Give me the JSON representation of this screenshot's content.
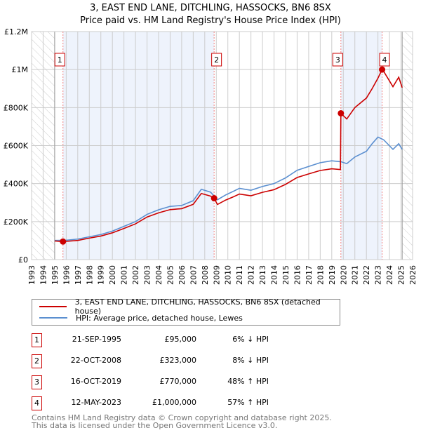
{
  "chart_data": {
    "type": "line",
    "title": "3, EAST END LANE, DITCHLING, HASSOCKS, BN6 8SX",
    "subtitle": "Price paid vs. HM Land Registry's House Price Index (HPI)",
    "xlim": [
      1993,
      2026
    ],
    "ylim": [
      0,
      1200000
    ],
    "x_ticks": [
      "1993",
      "1994",
      "1995",
      "1996",
      "1997",
      "1998",
      "1999",
      "2000",
      "2001",
      "2002",
      "2003",
      "2004",
      "2005",
      "2006",
      "2007",
      "2008",
      "2009",
      "2010",
      "2011",
      "2012",
      "2013",
      "2014",
      "2015",
      "2016",
      "2017",
      "2018",
      "2019",
      "2020",
      "2021",
      "2022",
      "2023",
      "2024",
      "2025",
      "2026"
    ],
    "y_ticks": [
      {
        "v": 0,
        "label": "£0"
      },
      {
        "v": 200000,
        "label": "£200K"
      },
      {
        "v": 400000,
        "label": "£400K"
      },
      {
        "v": 600000,
        "label": "£600K"
      },
      {
        "v": 800000,
        "label": "£800K"
      },
      {
        "v": 1000000,
        "label": "£1M"
      },
      {
        "v": 1200000,
        "label": "£1.2M"
      }
    ],
    "grid": true,
    "hatched_ranges": [
      [
        1993,
        1995
      ],
      [
        2025.1,
        2026
      ]
    ],
    "shaded_ranges": [
      [
        1995.72,
        2008.81
      ],
      [
        2019.79,
        2023.36
      ]
    ],
    "series": [
      {
        "name": "3, EAST END LANE, DITCHLING, HASSOCKS, BN6 8SX (detached house)",
        "color": "#cc0000",
        "x": [
          1995.0,
          1995.72,
          1996,
          1997,
          1998,
          1999,
          2000,
          2001,
          2002,
          2003,
          2004,
          2005,
          2006,
          2007,
          2007.7,
          2008.5,
          2008.81,
          2009.1,
          2009.8,
          2010.5,
          2011,
          2012,
          2013,
          2014,
          2015,
          2016,
          2017,
          2018,
          2019,
          2019.75,
          2019.79,
          2020.3,
          2021,
          2022,
          2022.5,
          2023,
          2023.36,
          2023.5,
          2024.3,
          2024.8,
          2025.1
        ],
        "y": [
          98000,
          95000,
          96000,
          101000,
          113000,
          124000,
          141000,
          164000,
          188000,
          224000,
          246000,
          263000,
          268000,
          291000,
          348000,
          334000,
          323000,
          290000,
          313000,
          331000,
          345000,
          336000,
          354000,
          368000,
          396000,
          432000,
          451000,
          469000,
          478000,
          474000,
          770000,
          740000,
          800000,
          850000,
          900000,
          955000,
          1000000,
          990000,
          910000,
          960000,
          905000
        ]
      },
      {
        "name": "HPI: Average price, detached house, Lewes",
        "color": "#5b8fd0",
        "x": [
          1995.0,
          1996,
          1997,
          1998,
          1999,
          2000,
          2001,
          2002,
          2003,
          2004,
          2005,
          2006,
          2007,
          2007.7,
          2008.5,
          2009.1,
          2009.8,
          2010.5,
          2011,
          2012,
          2013,
          2014,
          2015,
          2016,
          2017,
          2018,
          2019,
          2019.8,
          2020.3,
          2021,
          2022,
          2022.5,
          2023,
          2023.5,
          2024.3,
          2024.8,
          2025.1
        ],
        "y": [
          101000,
          102000,
          108000,
          120000,
          132000,
          150000,
          175000,
          200000,
          238000,
          262000,
          280000,
          285000,
          310000,
          370000,
          355000,
          315000,
          340000,
          360000,
          375000,
          365000,
          385000,
          400000,
          430000,
          470000,
          490000,
          510000,
          520000,
          515000,
          505000,
          540000,
          570000,
          610000,
          645000,
          630000,
          580000,
          610000,
          580000
        ]
      }
    ],
    "sales": [
      {
        "label": "1",
        "x": 1995.72,
        "y": 95000,
        "date": "21-SEP-1995",
        "price": "£95,000",
        "hpi": "6% ↓ HPI"
      },
      {
        "label": "2",
        "x": 2008.81,
        "y": 323000,
        "date": "22-OCT-2008",
        "price": "£323,000",
        "hpi": "8% ↓ HPI"
      },
      {
        "label": "3",
        "x": 2019.79,
        "y": 770000,
        "date": "16-OCT-2019",
        "price": "£770,000",
        "hpi": "48% ↑ HPI"
      },
      {
        "label": "4",
        "x": 2023.36,
        "y": 1000000,
        "date": "12-MAY-2023",
        "price": "£1,000,000",
        "hpi": "57% ↑ HPI"
      }
    ],
    "legend": {
      "placement": "below"
    }
  },
  "footer": {
    "line1": "Contains HM Land Registry data © Crown copyright and database right 2025.",
    "line2": "This data is licensed under the Open Government Licence v3.0."
  }
}
